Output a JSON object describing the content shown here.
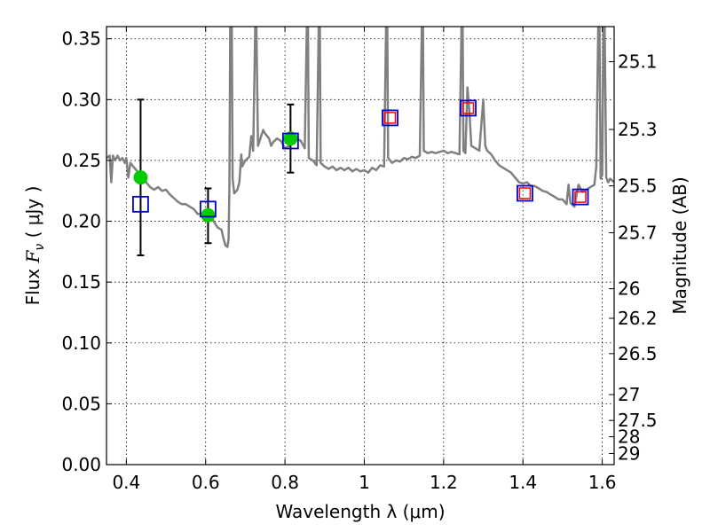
{
  "chart_data": {
    "type": "scatter",
    "xlabel": "Wavelength  λ (μm)",
    "ylabel": "Flux  F_ν  ( μJy )",
    "ylabel_parts": {
      "pre": "Flux  ",
      "sym": "F",
      "sub": "ν",
      "post": "  ( μJy )"
    },
    "y2label": "Magnitude (AB)",
    "xlim": [
      0.35,
      1.63
    ],
    "ylim": [
      0.0,
      0.36
    ],
    "grid": true,
    "x_ticks": [
      {
        "value": 0.4,
        "label": "0.4"
      },
      {
        "value": 0.6,
        "label": "0.6"
      },
      {
        "value": 0.8,
        "label": "0.8"
      },
      {
        "value": 1.0,
        "label": "1"
      },
      {
        "value": 1.2,
        "label": "1.2"
      },
      {
        "value": 1.4,
        "label": "1.4"
      },
      {
        "value": 1.6,
        "label": "1.6"
      }
    ],
    "y_ticks": [
      {
        "value": 0.0,
        "label": "0.00"
      },
      {
        "value": 0.05,
        "label": "0.05"
      },
      {
        "value": 0.1,
        "label": "0.10"
      },
      {
        "value": 0.15,
        "label": "0.15"
      },
      {
        "value": 0.2,
        "label": "0.20"
      },
      {
        "value": 0.25,
        "label": "0.25"
      },
      {
        "value": 0.3,
        "label": "0.30"
      },
      {
        "value": 0.35,
        "label": "0.35"
      }
    ],
    "y2_ticks": [
      {
        "value": 25.1,
        "label": "25.1"
      },
      {
        "value": 25.3,
        "label": "25.3"
      },
      {
        "value": 25.5,
        "label": "25.5"
      },
      {
        "value": 25.7,
        "label": "25.7"
      },
      {
        "value": 26.0,
        "label": "26"
      },
      {
        "value": 26.2,
        "label": "26.2"
      },
      {
        "value": 26.5,
        "label": "26.5"
      },
      {
        "value": 27.0,
        "label": "27"
      },
      {
        "value": 27.5,
        "label": "27.5"
      },
      {
        "value": 28.0,
        "label": "28"
      },
      {
        "value": 29.0,
        "label": "29"
      }
    ],
    "series": [
      {
        "kind": "line",
        "color": "#808080",
        "points": [
          [
            0.35,
            0.252
          ],
          [
            0.358,
            0.254
          ],
          [
            0.362,
            0.232
          ],
          [
            0.366,
            0.254
          ],
          [
            0.372,
            0.25
          ],
          [
            0.378,
            0.254
          ],
          [
            0.384,
            0.25
          ],
          [
            0.39,
            0.252
          ],
          [
            0.396,
            0.248
          ],
          [
            0.4,
            0.252
          ],
          [
            0.405,
            0.236
          ],
          [
            0.41,
            0.248
          ],
          [
            0.42,
            0.244
          ],
          [
            0.43,
            0.24
          ],
          [
            0.44,
            0.236
          ],
          [
            0.45,
            0.232
          ],
          [
            0.46,
            0.228
          ],
          [
            0.47,
            0.226
          ],
          [
            0.48,
            0.228
          ],
          [
            0.49,
            0.225
          ],
          [
            0.5,
            0.226
          ],
          [
            0.51,
            0.222
          ],
          [
            0.52,
            0.219
          ],
          [
            0.53,
            0.216
          ],
          [
            0.54,
            0.214
          ],
          [
            0.55,
            0.214
          ],
          [
            0.56,
            0.212
          ],
          [
            0.57,
            0.21
          ],
          [
            0.58,
            0.206
          ],
          [
            0.59,
            0.206
          ],
          [
            0.6,
            0.205
          ],
          [
            0.61,
            0.205
          ],
          [
            0.615,
            0.203
          ],
          [
            0.62,
            0.2
          ],
          [
            0.63,
            0.195
          ],
          [
            0.64,
            0.193
          ],
          [
            0.645,
            0.186
          ],
          [
            0.65,
            0.18
          ],
          [
            0.655,
            0.179
          ],
          [
            0.658,
            0.186
          ],
          [
            0.66,
            0.23
          ],
          [
            0.662,
            0.36
          ],
          [
            0.666,
            0.36
          ],
          [
            0.668,
            0.235
          ],
          [
            0.672,
            0.223
          ],
          [
            0.68,
            0.226
          ],
          [
            0.685,
            0.232
          ],
          [
            0.69,
            0.255
          ],
          [
            0.692,
            0.245
          ],
          [
            0.7,
            0.25
          ],
          [
            0.71,
            0.253
          ],
          [
            0.715,
            0.27
          ],
          [
            0.72,
            0.258
          ],
          [
            0.725,
            0.36
          ],
          [
            0.728,
            0.36
          ],
          [
            0.732,
            0.262
          ],
          [
            0.74,
            0.27
          ],
          [
            0.745,
            0.275
          ],
          [
            0.75,
            0.272
          ],
          [
            0.76,
            0.268
          ],
          [
            0.765,
            0.262
          ],
          [
            0.77,
            0.265
          ],
          [
            0.78,
            0.268
          ],
          [
            0.79,
            0.266
          ],
          [
            0.8,
            0.26
          ],
          [
            0.81,
            0.262
          ],
          [
            0.82,
            0.27
          ],
          [
            0.83,
            0.268
          ],
          [
            0.84,
            0.266
          ],
          [
            0.85,
            0.26
          ],
          [
            0.855,
            0.36
          ],
          [
            0.858,
            0.36
          ],
          [
            0.86,
            0.252
          ],
          [
            0.87,
            0.25
          ],
          [
            0.88,
            0.246
          ],
          [
            0.885,
            0.36
          ],
          [
            0.888,
            0.36
          ],
          [
            0.89,
            0.248
          ],
          [
            0.9,
            0.245
          ],
          [
            0.91,
            0.243
          ],
          [
            0.92,
            0.245
          ],
          [
            0.93,
            0.242
          ],
          [
            0.94,
            0.244
          ],
          [
            0.95,
            0.242
          ],
          [
            0.96,
            0.244
          ],
          [
            0.97,
            0.241
          ],
          [
            0.98,
            0.243
          ],
          [
            0.99,
            0.241
          ],
          [
            1.0,
            0.242
          ],
          [
            1.01,
            0.24
          ],
          [
            1.02,
            0.244
          ],
          [
            1.03,
            0.242
          ],
          [
            1.04,
            0.246
          ],
          [
            1.05,
            0.245
          ],
          [
            1.055,
            0.36
          ],
          [
            1.058,
            0.36
          ],
          [
            1.06,
            0.252
          ],
          [
            1.07,
            0.248
          ],
          [
            1.08,
            0.25
          ],
          [
            1.09,
            0.249
          ],
          [
            1.1,
            0.252
          ],
          [
            1.11,
            0.251
          ],
          [
            1.12,
            0.253
          ],
          [
            1.13,
            0.252
          ],
          [
            1.14,
            0.254
          ],
          [
            1.145,
            0.36
          ],
          [
            1.148,
            0.36
          ],
          [
            1.15,
            0.258
          ],
          [
            1.16,
            0.256
          ],
          [
            1.17,
            0.257
          ],
          [
            1.18,
            0.256
          ],
          [
            1.19,
            0.257
          ],
          [
            1.2,
            0.258
          ],
          [
            1.21,
            0.256
          ],
          [
            1.22,
            0.257
          ],
          [
            1.23,
            0.256
          ],
          [
            1.24,
            0.255
          ],
          [
            1.245,
            0.36
          ],
          [
            1.248,
            0.36
          ],
          [
            1.25,
            0.258
          ],
          [
            1.255,
            0.256
          ],
          [
            1.26,
            0.31
          ],
          [
            1.265,
            0.29
          ],
          [
            1.27,
            0.262
          ],
          [
            1.28,
            0.26
          ],
          [
            1.29,
            0.258
          ],
          [
            1.3,
            0.3
          ],
          [
            1.305,
            0.262
          ],
          [
            1.31,
            0.258
          ],
          [
            1.32,
            0.255
          ],
          [
            1.33,
            0.25
          ],
          [
            1.34,
            0.246
          ],
          [
            1.35,
            0.244
          ],
          [
            1.36,
            0.242
          ],
          [
            1.37,
            0.24
          ],
          [
            1.38,
            0.236
          ],
          [
            1.39,
            0.232
          ],
          [
            1.4,
            0.231
          ],
          [
            1.41,
            0.232
          ],
          [
            1.42,
            0.229
          ],
          [
            1.43,
            0.229
          ],
          [
            1.44,
            0.227
          ],
          [
            1.45,
            0.225
          ],
          [
            1.46,
            0.224
          ],
          [
            1.47,
            0.222
          ],
          [
            1.48,
            0.22
          ],
          [
            1.49,
            0.218
          ],
          [
            1.5,
            0.218
          ],
          [
            1.51,
            0.214
          ],
          [
            1.515,
            0.23
          ],
          [
            1.52,
            0.215
          ],
          [
            1.53,
            0.212
          ],
          [
            1.54,
            0.23
          ],
          [
            1.55,
            0.224
          ],
          [
            1.56,
            0.226
          ],
          [
            1.57,
            0.228
          ],
          [
            1.58,
            0.23
          ],
          [
            1.585,
            0.245
          ],
          [
            1.59,
            0.36
          ],
          [
            1.593,
            0.36
          ],
          [
            1.596,
            0.235
          ],
          [
            1.6,
            0.238
          ],
          [
            1.603,
            0.36
          ],
          [
            1.606,
            0.36
          ],
          [
            1.61,
            0.236
          ],
          [
            1.615,
            0.232
          ],
          [
            1.62,
            0.235
          ],
          [
            1.63,
            0.232
          ]
        ]
      },
      {
        "kind": "observed-with-errorbars",
        "color": "#00cc00",
        "points": [
          {
            "x": 0.436,
            "y": 0.236,
            "err_low": 0.172,
            "err_high": 0.3
          },
          {
            "x": 0.606,
            "y": 0.205,
            "err_low": 0.182,
            "err_high": 0.227
          },
          {
            "x": 0.814,
            "y": 0.268,
            "err_low": 0.24,
            "err_high": 0.296
          }
        ]
      },
      {
        "kind": "model-squares-blue",
        "color": "#0000cc",
        "points": [
          {
            "x": 0.436,
            "y": 0.214
          },
          {
            "x": 0.606,
            "y": 0.21
          },
          {
            "x": 0.814,
            "y": 0.266
          },
          {
            "x": 1.065,
            "y": 0.285
          },
          {
            "x": 1.262,
            "y": 0.293
          },
          {
            "x": 1.405,
            "y": 0.223
          },
          {
            "x": 1.545,
            "y": 0.22
          }
        ]
      },
      {
        "kind": "model-squares-red",
        "color": "#ff0000",
        "points": [
          {
            "x": 1.065,
            "y": 0.285
          },
          {
            "x": 1.262,
            "y": 0.293
          },
          {
            "x": 1.405,
            "y": 0.223
          },
          {
            "x": 1.545,
            "y": 0.22
          }
        ]
      }
    ]
  }
}
